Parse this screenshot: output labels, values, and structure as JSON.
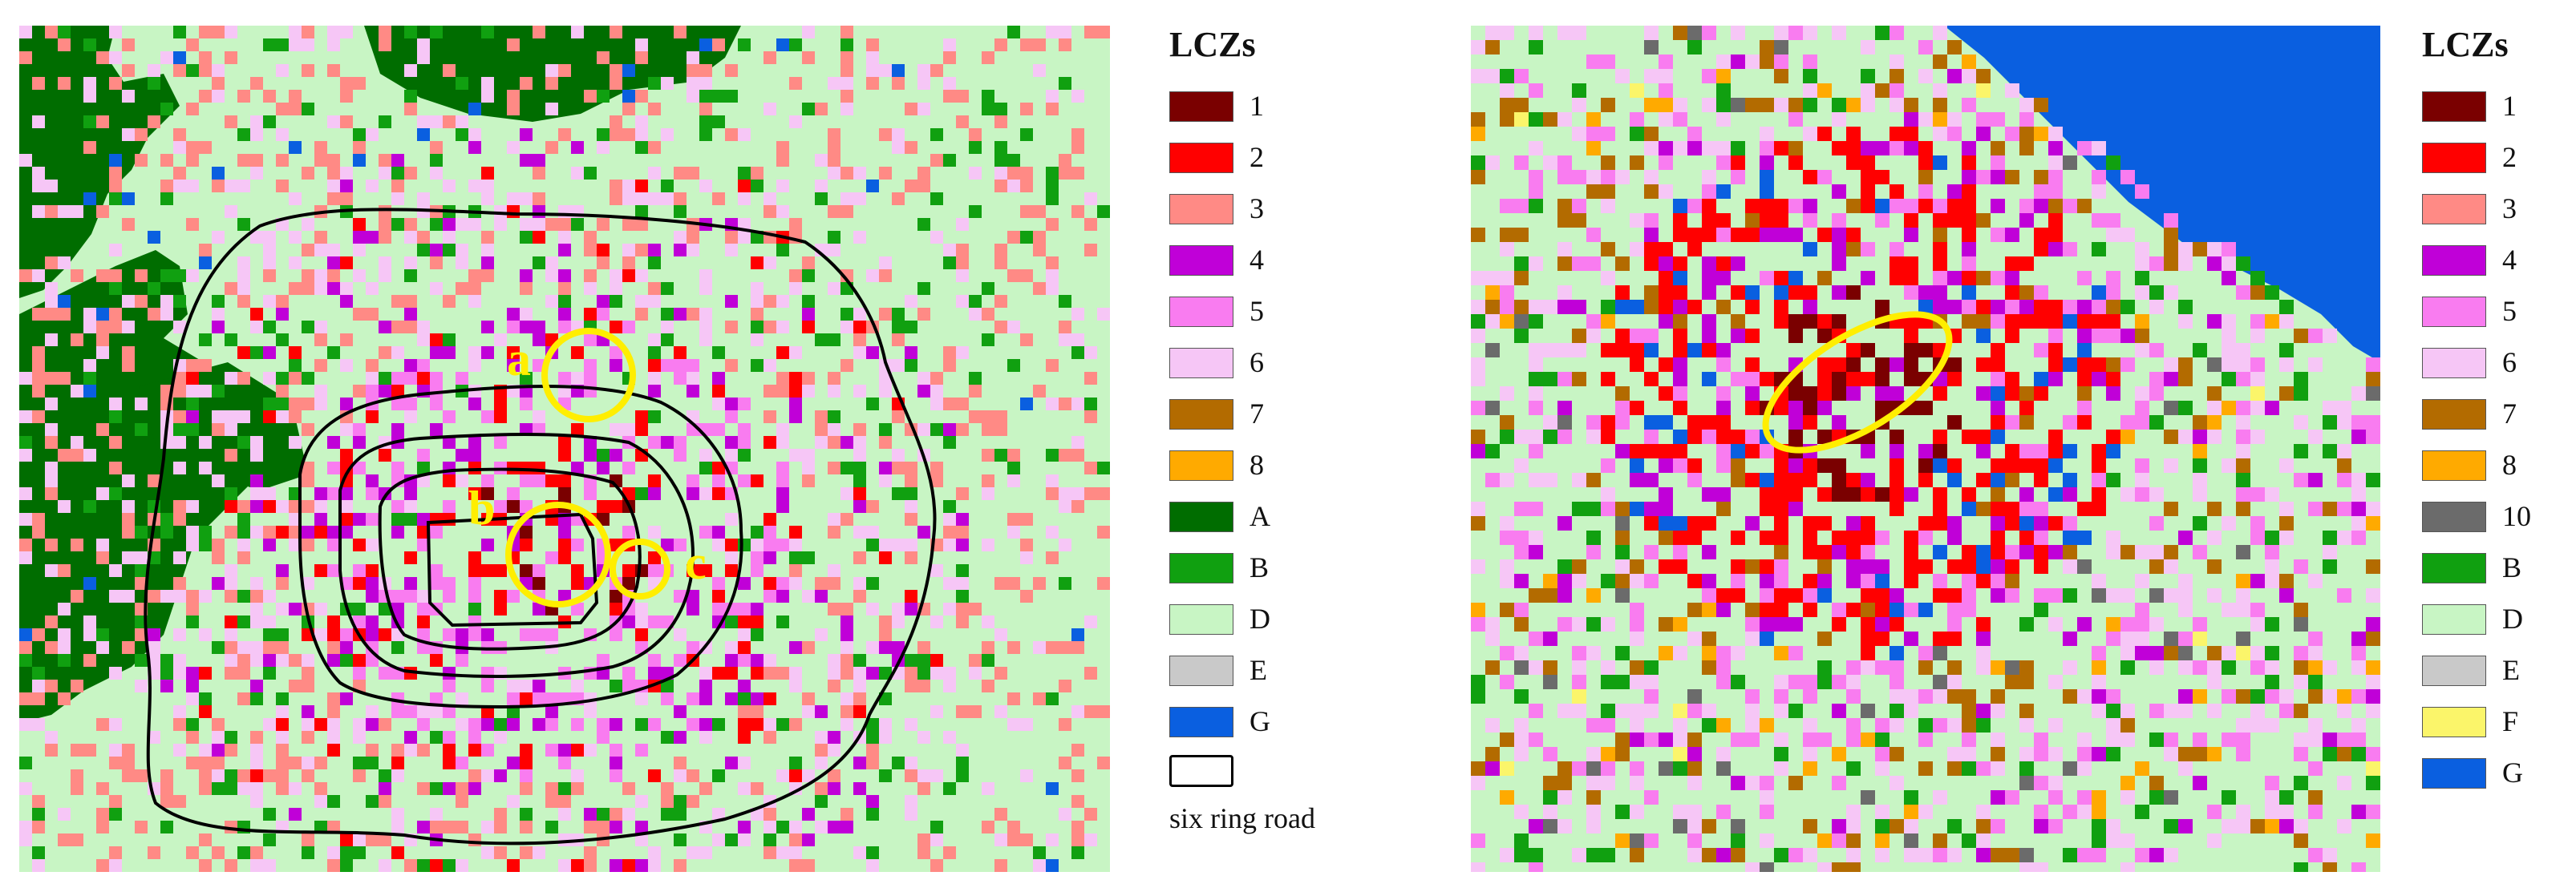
{
  "left_panel": {
    "legend_title": "LCZs",
    "legend": [
      {
        "code": "1",
        "color": "#7a0000"
      },
      {
        "code": "2",
        "color": "#ff0000"
      },
      {
        "code": "3",
        "color": "#ff8a85"
      },
      {
        "code": "4",
        "color": "#c000d8"
      },
      {
        "code": "5",
        "color": "#f97cf0"
      },
      {
        "code": "6",
        "color": "#f6c6f6"
      },
      {
        "code": "7",
        "color": "#b36b00"
      },
      {
        "code": "8",
        "color": "#ffaa00"
      },
      {
        "code": "A",
        "color": "#006d00"
      },
      {
        "code": "B",
        "color": "#10a010"
      },
      {
        "code": "D",
        "color": "#c8f5c4"
      },
      {
        "code": "E",
        "color": "#c9c9c9"
      },
      {
        "code": "G",
        "color": "#0a5fe0"
      }
    ],
    "ring_legend_label": "six ring road",
    "annotations": [
      "a",
      "b",
      "c"
    ]
  },
  "right_panel": {
    "legend_title": "LCZs",
    "legend": [
      {
        "code": "1",
        "color": "#7a0000"
      },
      {
        "code": "2",
        "color": "#ff0000"
      },
      {
        "code": "3",
        "color": "#ff8a85"
      },
      {
        "code": "4",
        "color": "#c000d8"
      },
      {
        "code": "5",
        "color": "#f97cf0"
      },
      {
        "code": "6",
        "color": "#f6c6f6"
      },
      {
        "code": "7",
        "color": "#b36b00"
      },
      {
        "code": "8",
        "color": "#ffaa00"
      },
      {
        "code": "10",
        "color": "#6b6b6b"
      },
      {
        "code": "B",
        "color": "#10a010"
      },
      {
        "code": "D",
        "color": "#c8f5c4"
      },
      {
        "code": "E",
        "color": "#c9c9c9"
      },
      {
        "code": "F",
        "color": "#fbf56a"
      },
      {
        "code": "G",
        "color": "#0a5fe0"
      }
    ]
  },
  "colors": {
    "highlight": "#ffee00",
    "ring_road": "#000000",
    "background_class": "#c8f5c4"
  }
}
